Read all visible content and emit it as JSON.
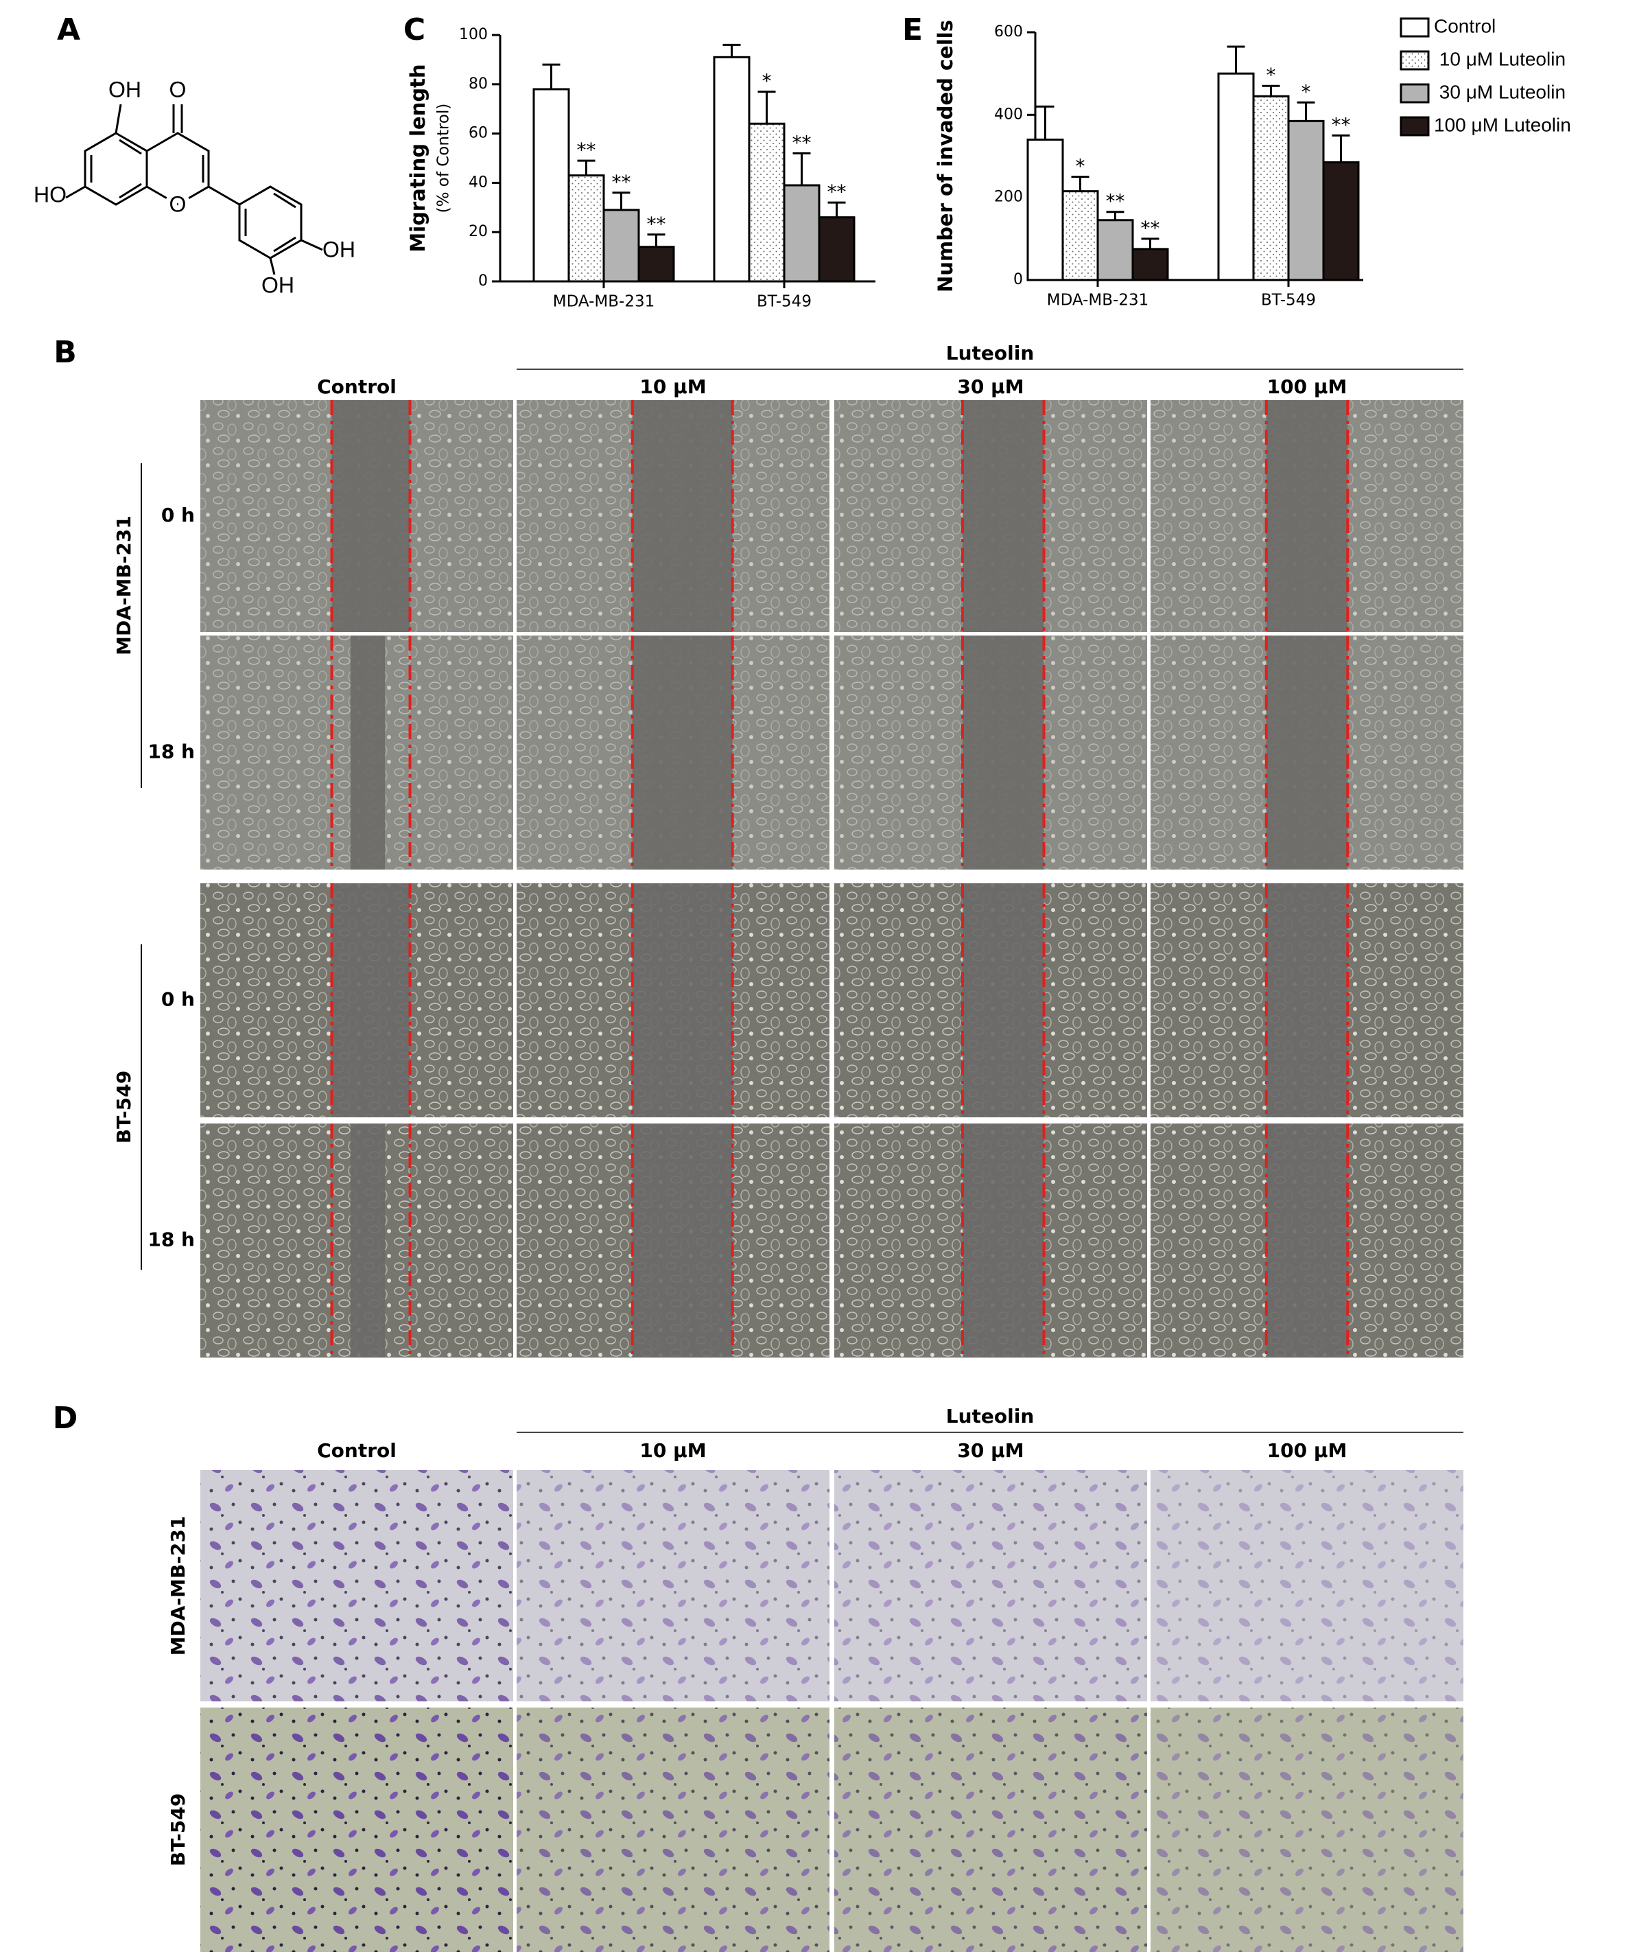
{
  "panel_labels": [
    "A",
    "B",
    "C",
    "D",
    "E"
  ],
  "structure": {
    "labels": [
      "OH",
      "O",
      "HO",
      "O",
      "OH",
      "OH"
    ]
  },
  "wound_assay": {
    "group_label": "Luteolin",
    "columns": [
      "Control",
      "10 μM",
      "30  μM",
      "100 μM"
    ],
    "cell_lines": [
      "MDA-MB-231",
      "BT-549"
    ],
    "times": [
      "0 h",
      "18 h"
    ]
  },
  "invasion_assay": {
    "group_label": "Luteolin",
    "columns": [
      "Control",
      "10 μM",
      "30  μM",
      "100 μM"
    ],
    "cell_lines": [
      "MDA-MB-231",
      "BT-549"
    ]
  },
  "chart_data": [
    {
      "type": "bar",
      "y_label": "Migrating length",
      "y_sublabel": "(% of Control)",
      "categories": [
        "MDA-MB-231",
        "BT-549"
      ],
      "ylim": [
        0,
        100
      ],
      "yticks": [
        0,
        20,
        40,
        60,
        80,
        100
      ],
      "series": [
        {
          "color": "#ffffff",
          "values": [
            78,
            91
          ],
          "errors": [
            10,
            5
          ],
          "annotations": [
            null,
            null
          ]
        },
        {
          "color": "#ffffff",
          "pattern": "dots",
          "values": [
            43,
            64
          ],
          "errors": [
            6,
            13
          ],
          "annotations": [
            "**",
            "*"
          ]
        },
        {
          "color": "#b3b3b3",
          "values": [
            29,
            39
          ],
          "errors": [
            7,
            13
          ],
          "annotations": [
            "**",
            "**"
          ]
        },
        {
          "color": "#231815",
          "values": [
            14,
            26
          ],
          "errors": [
            5,
            6
          ],
          "annotations": [
            "**",
            "**"
          ]
        }
      ]
    },
    {
      "type": "bar",
      "y_label": "Number of invaded cells",
      "categories": [
        "MDA-MB-231",
        "BT-549"
      ],
      "ylim": [
        0,
        600
      ],
      "yticks": [
        0,
        200,
        400,
        600
      ],
      "legend": "outside-right",
      "series": [
        {
          "name": "Control",
          "color": "#ffffff",
          "values": [
            340,
            500
          ],
          "errors": [
            80,
            65
          ],
          "annotations": [
            null,
            null
          ]
        },
        {
          "name": " 10 μM Luteolin",
          "color": "#ffffff",
          "pattern": "dots",
          "values": [
            215,
            445
          ],
          "errors": [
            35,
            25
          ],
          "annotations": [
            "*",
            "*"
          ]
        },
        {
          "name": " 30 μM Luteolin",
          "color": "#b3b3b3",
          "values": [
            145,
            385
          ],
          "errors": [
            20,
            45
          ],
          "annotations": [
            "**",
            "*"
          ]
        },
        {
          "name": "100 μM Luteolin",
          "color": "#231815",
          "values": [
            75,
            285
          ],
          "errors": [
            25,
            65
          ],
          "annotations": [
            "**",
            "**"
          ]
        }
      ]
    }
  ]
}
